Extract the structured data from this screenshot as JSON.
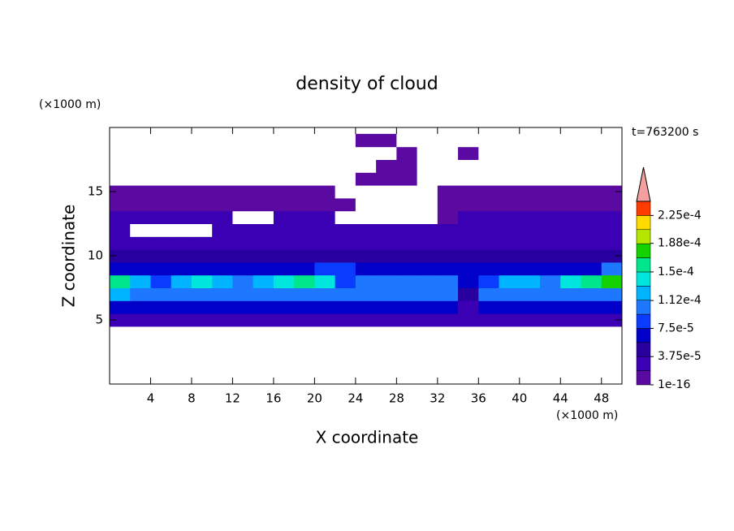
{
  "chart_data": {
    "type": "contour",
    "title": "density of cloud",
    "x_label": "X coordinate",
    "y_label": "Z coordinate",
    "x_unit": "(×1000 m)",
    "y_unit": "(×1000 m)",
    "time_label": "t=763200 s",
    "xlim": [
      0,
      50
    ],
    "ylim": [
      0,
      20
    ],
    "xticks": [
      4,
      8,
      12,
      16,
      20,
      24,
      28,
      32,
      36,
      40,
      44,
      48
    ],
    "yticks": [
      5,
      10,
      15
    ],
    "x": [
      1,
      3,
      5,
      7,
      9,
      11,
      13,
      15,
      17,
      19,
      21,
      23,
      25,
      27,
      29,
      31,
      33,
      35,
      37,
      39,
      41,
      43,
      45,
      47,
      49
    ],
    "y": [
      5,
      6,
      7,
      8,
      9,
      10,
      11,
      12,
      13,
      14,
      15,
      16,
      17,
      18,
      19
    ],
    "z": [
      [
        2e-05,
        2e-05,
        2e-05,
        2e-05,
        2e-05,
        2e-05,
        2e-05,
        2e-05,
        2e-05,
        2e-05,
        2e-05,
        2e-05,
        2e-05,
        2e-05,
        2e-05,
        2e-05,
        2e-05,
        2e-05,
        2e-05,
        2e-05,
        2e-05,
        2e-05,
        2e-05,
        2e-05,
        2e-05
      ],
      [
        7e-05,
        7e-05,
        7e-05,
        7e-05,
        7e-05,
        7e-05,
        7e-05,
        7e-05,
        7e-05,
        7e-05,
        7e-05,
        7e-05,
        7e-05,
        7e-05,
        7e-05,
        7e-05,
        7e-05,
        3e-05,
        7e-05,
        7e-05,
        7e-05,
        7e-05,
        7e-05,
        7e-05,
        7e-05
      ],
      [
        0.00013,
        0.0001,
        0.0001,
        0.0001,
        0.0001,
        0.0001,
        0.0001,
        0.0001,
        0.0001,
        0.0001,
        0.0001,
        0.0001,
        0.0001,
        0.0001,
        0.0001,
        0.0001,
        0.0001,
        4e-05,
        0.0001,
        0.0001,
        0.0001,
        0.0001,
        0.0001,
        0.0001,
        0.0001
      ],
      [
        0.00016,
        0.00012,
        9e-05,
        0.00012,
        0.00014,
        0.00013,
        0.0001,
        0.00012,
        0.00014,
        0.00015,
        0.00014,
        9e-05,
        0.0001,
        0.00011,
        0.00011,
        0.0001,
        0.0001,
        6e-05,
        9e-05,
        0.00012,
        0.00012,
        0.0001,
        0.00014,
        0.00016,
        0.00017
      ],
      [
        7e-05,
        7e-05,
        7e-05,
        7e-05,
        7e-05,
        7e-05,
        7e-05,
        7e-05,
        7e-05,
        7e-05,
        8e-05,
        9e-05,
        7e-05,
        7e-05,
        7e-05,
        7e-05,
        7e-05,
        7e-05,
        7e-05,
        7e-05,
        7e-05,
        7e-05,
        7e-05,
        7e-05,
        0.0001
      ],
      [
        4e-05,
        4e-05,
        4e-05,
        4e-05,
        4e-05,
        4e-05,
        4e-05,
        4e-05,
        4e-05,
        4e-05,
        4e-05,
        4e-05,
        4e-05,
        4e-05,
        4e-05,
        4e-05,
        4e-05,
        4e-05,
        4e-05,
        4e-05,
        4e-05,
        4e-05,
        4e-05,
        4e-05,
        4e-05
      ],
      [
        3e-05,
        3e-05,
        3e-05,
        3e-05,
        3e-05,
        3e-05,
        3e-05,
        3e-05,
        3e-05,
        3e-05,
        3e-05,
        3e-05,
        3e-05,
        3e-05,
        3e-05,
        3e-05,
        3e-05,
        3e-05,
        3e-05,
        3e-05,
        3e-05,
        3e-05,
        3e-05,
        3e-05,
        3e-05
      ],
      [
        2e-05,
        0,
        0,
        0,
        0,
        2e-05,
        2e-05,
        2e-05,
        2e-05,
        2e-05,
        2e-05,
        2e-05,
        2e-05,
        2e-05,
        2e-05,
        2e-05,
        2e-05,
        2e-05,
        2e-05,
        2e-05,
        2e-05,
        2e-05,
        2e-05,
        2e-05,
        2e-05
      ],
      [
        2e-05,
        2e-05,
        2e-05,
        2e-05,
        2e-05,
        2e-05,
        0,
        0,
        2e-05,
        2e-05,
        2e-05,
        0,
        0,
        0,
        0,
        0,
        1e-05,
        2e-05,
        2e-05,
        2e-05,
        2e-05,
        2e-05,
        2e-05,
        2e-05,
        2e-05
      ],
      [
        1e-05,
        1e-05,
        1e-05,
        1e-05,
        1e-05,
        1e-05,
        1e-05,
        1e-05,
        1e-05,
        1e-05,
        1e-05,
        1e-05,
        0,
        0,
        0,
        0,
        1e-05,
        1e-05,
        1e-05,
        1e-05,
        1e-05,
        1e-05,
        1e-05,
        1e-05,
        1e-05
      ],
      [
        1e-05,
        1e-05,
        1e-05,
        1e-05,
        1e-05,
        1e-05,
        1e-05,
        1e-05,
        1e-05,
        1e-05,
        1e-05,
        0,
        0,
        0,
        0,
        0,
        1e-05,
        1e-05,
        1e-05,
        1e-05,
        1e-05,
        1e-05,
        1e-05,
        1e-05,
        1e-05
      ],
      [
        0,
        0,
        0,
        0,
        0,
        0,
        0,
        0,
        0,
        0,
        0,
        0,
        1e-05,
        1e-05,
        1e-05,
        0,
        0,
        0,
        0,
        0,
        0,
        0,
        0,
        0,
        0
      ],
      [
        0,
        0,
        0,
        0,
        0,
        0,
        0,
        0,
        0,
        0,
        0,
        0,
        0,
        1e-05,
        1e-05,
        0,
        0,
        0,
        0,
        0,
        0,
        0,
        0,
        0,
        0
      ],
      [
        0,
        0,
        0,
        0,
        0,
        0,
        0,
        0,
        0,
        0,
        0,
        0,
        0,
        0,
        1e-05,
        0,
        0,
        1e-05,
        0,
        0,
        0,
        0,
        0,
        0,
        0
      ],
      [
        0,
        0,
        0,
        0,
        0,
        0,
        0,
        0,
        0,
        0,
        0,
        0,
        1e-05,
        1e-05,
        0,
        0,
        0,
        0,
        0,
        0,
        0,
        0,
        0,
        0,
        0
      ]
    ],
    "levels": [
      1e-16,
      1.875e-05,
      3.75e-05,
      5.625e-05,
      7.5e-05,
      9.375e-05,
      0.0001125,
      0.00013125,
      0.00015,
      0.00016875,
      0.0001875,
      0.00020625,
      0.000225,
      0.00024375
    ],
    "colors": [
      "#5a0aa0",
      "#3c00b4",
      "#2800a0",
      "#0000c8",
      "#0a3cff",
      "#1e78ff",
      "#00b4ff",
      "#00e6dc",
      "#00e68c",
      "#14d200",
      "#b4e600",
      "#ffdc00",
      "#ff3c00"
    ],
    "extend_color": "#f4a0a0",
    "colorbar_ticks": [
      {
        "value": 1e-16,
        "label": "1e-16"
      },
      {
        "value": 3.75e-05,
        "label": "3.75e-5"
      },
      {
        "value": 7.5e-05,
        "label": "7.5e-5"
      },
      {
        "value": 0.000112,
        "label": "1.12e-4"
      },
      {
        "value": 0.00015,
        "label": "1.5e-4"
      },
      {
        "value": 0.000188,
        "label": "1.88e-4"
      },
      {
        "value": 0.000225,
        "label": "2.25e-4"
      }
    ]
  }
}
